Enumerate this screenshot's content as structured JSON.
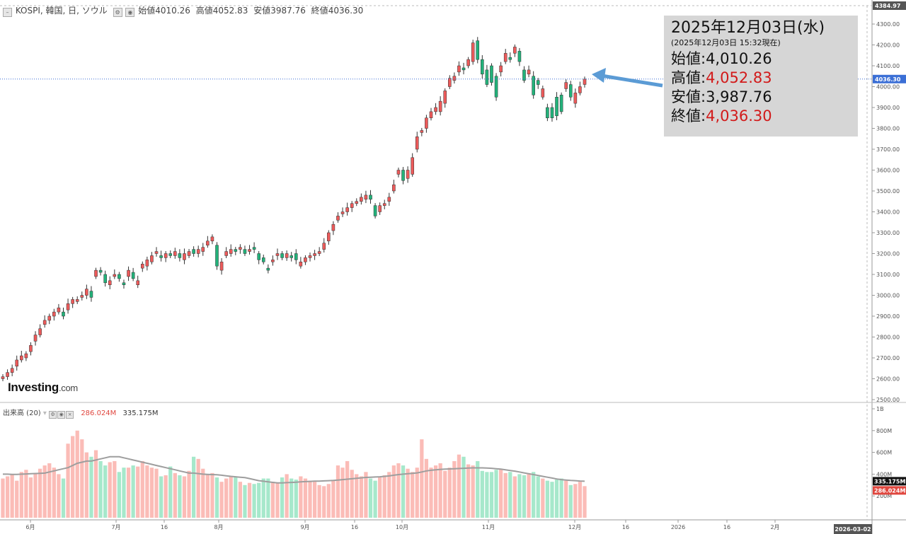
{
  "header": {
    "collapse_icon": "minus-box-icon",
    "symbol": "KOSPI, 韓国, 日, ソウル",
    "open_label": "始値",
    "open": "4010.26",
    "high_label": "高値",
    "high": "4052.83",
    "low_label": "安値",
    "low": "3987.76",
    "close_label": "終値",
    "close": "4036.30"
  },
  "volume_header": {
    "label": "出来高 (20)",
    "volume": "286.024M",
    "ma": "335.175M"
  },
  "logo": {
    "main": "Investing",
    "suffix": ".com"
  },
  "info_box": {
    "date": "2025年12月03日(水)",
    "asof": "(2025年12月03日 15:32現在)",
    "open": "始値:4,010.26",
    "high_label": "高値:",
    "high": "4,052.83",
    "low": "安値:3,987.76",
    "close_label": "終値:",
    "close": "4,036.30"
  },
  "colors": {
    "up": "#ec5a5a",
    "down": "#22b27a",
    "up_vol": "#fbbcb7",
    "down_vol": "#a6e8cb",
    "ma": "#9e9e9e",
    "arrow": "#5b9bd5",
    "last_price_bg": "#3b6fd6"
  },
  "chart_data": {
    "type": "candlestick",
    "title": "KOSPI, 韓国, 日, ソウル",
    "ylim": [
      2500,
      4384.97
    ],
    "yticks": [
      "2500.00",
      "2600.00",
      "2700.00",
      "2800.00",
      "2900.00",
      "3000.00",
      "3100.00",
      "3200.00",
      "3300.00",
      "3400.00",
      "3500.00",
      "3600.00",
      "3700.00",
      "3800.00",
      "3900.00",
      "4000.00",
      "4100.00",
      "4200.00",
      "4300.00"
    ],
    "ytop_label": "4384.97",
    "last_price": 4036.3,
    "last_price_label": "4036.30",
    "xlabels": [
      "6月",
      "7月",
      "16",
      "8月",
      "9月",
      "16",
      "10月",
      "11月",
      "12月",
      "16",
      "2026",
      "16",
      "2月"
    ],
    "xend_label": "2026-03-02",
    "candles": [
      {
        "o": 2600,
        "c": 2610
      },
      {
        "o": 2610,
        "c": 2630
      },
      {
        "o": 2630,
        "c": 2650
      },
      {
        "o": 2660,
        "c": 2690
      },
      {
        "o": 2690,
        "c": 2710
      },
      {
        "o": 2700,
        "c": 2720
      },
      {
        "o": 2730,
        "c": 2760
      },
      {
        "o": 2780,
        "c": 2810
      },
      {
        "o": 2810,
        "c": 2840
      },
      {
        "o": 2860,
        "c": 2880
      },
      {
        "o": 2880,
        "c": 2900
      },
      {
        "o": 2900,
        "c": 2920
      },
      {
        "o": 2920,
        "c": 2940
      },
      {
        "o": 2920,
        "c": 2900
      },
      {
        "o": 2930,
        "c": 2960
      },
      {
        "o": 2960,
        "c": 2980
      },
      {
        "o": 2970,
        "c": 2980
      },
      {
        "o": 2990,
        "c": 3000
      },
      {
        "o": 3000,
        "c": 3030
      },
      {
        "o": 3020,
        "c": 2990
      },
      {
        "o": 3090,
        "c": 3120
      },
      {
        "o": 3120,
        "c": 3110
      },
      {
        "o": 3100,
        "c": 3060
      },
      {
        "o": 3050,
        "c": 3070
      },
      {
        "o": 3090,
        "c": 3100
      },
      {
        "o": 3100,
        "c": 3080
      },
      {
        "o": 3060,
        "c": 3050
      },
      {
        "o": 3090,
        "c": 3120
      },
      {
        "o": 3110,
        "c": 3080
      },
      {
        "o": 3050,
        "c": 3070
      },
      {
        "o": 3130,
        "c": 3150
      },
      {
        "o": 3140,
        "c": 3170
      },
      {
        "o": 3160,
        "c": 3190
      },
      {
        "o": 3200,
        "c": 3210
      },
      {
        "o": 3190,
        "c": 3180
      },
      {
        "o": 3180,
        "c": 3200
      },
      {
        "o": 3200,
        "c": 3190
      },
      {
        "o": 3190,
        "c": 3210
      },
      {
        "o": 3200,
        "c": 3180
      },
      {
        "o": 3170,
        "c": 3200
      },
      {
        "o": 3190,
        "c": 3210
      },
      {
        "o": 3220,
        "c": 3200
      },
      {
        "o": 3200,
        "c": 3220
      },
      {
        "o": 3210,
        "c": 3230
      },
      {
        "o": 3240,
        "c": 3260
      },
      {
        "o": 3260,
        "c": 3280
      },
      {
        "o": 3240,
        "c": 3140
      },
      {
        "o": 3120,
        "c": 3160
      },
      {
        "o": 3190,
        "c": 3210
      },
      {
        "o": 3200,
        "c": 3220
      },
      {
        "o": 3220,
        "c": 3210
      },
      {
        "o": 3220,
        "c": 3230
      },
      {
        "o": 3220,
        "c": 3200
      },
      {
        "o": 3210,
        "c": 3220
      },
      {
        "o": 3230,
        "c": 3220
      },
      {
        "o": 3200,
        "c": 3170
      },
      {
        "o": 3180,
        "c": 3160
      },
      {
        "o": 3130,
        "c": 3120
      },
      {
        "o": 3160,
        "c": 3170
      },
      {
        "o": 3190,
        "c": 3200
      },
      {
        "o": 3200,
        "c": 3180
      },
      {
        "o": 3180,
        "c": 3200
      },
      {
        "o": 3190,
        "c": 3180
      },
      {
        "o": 3200,
        "c": 3170
      },
      {
        "o": 3140,
        "c": 3160
      },
      {
        "o": 3160,
        "c": 3180
      },
      {
        "o": 3180,
        "c": 3190
      },
      {
        "o": 3190,
        "c": 3200
      },
      {
        "o": 3200,
        "c": 3210
      },
      {
        "o": 3220,
        "c": 3250
      },
      {
        "o": 3260,
        "c": 3300
      },
      {
        "o": 3310,
        "c": 3340
      },
      {
        "o": 3360,
        "c": 3380
      },
      {
        "o": 3390,
        "c": 3400
      },
      {
        "o": 3400,
        "c": 3420
      },
      {
        "o": 3420,
        "c": 3440
      },
      {
        "o": 3440,
        "c": 3450
      },
      {
        "o": 3450,
        "c": 3470
      },
      {
        "o": 3460,
        "c": 3480
      },
      {
        "o": 3480,
        "c": 3460
      },
      {
        "o": 3430,
        "c": 3380
      },
      {
        "o": 3400,
        "c": 3430
      },
      {
        "o": 3430,
        "c": 3440
      },
      {
        "o": 3450,
        "c": 3470
      },
      {
        "o": 3500,
        "c": 3530
      },
      {
        "o": 3580,
        "c": 3600
      },
      {
        "o": 3600,
        "c": 3550
      },
      {
        "o": 3560,
        "c": 3600
      },
      {
        "o": 3580,
        "c": 3660
      },
      {
        "o": 3700,
        "c": 3760
      },
      {
        "o": 3780,
        "c": 3790
      },
      {
        "o": 3800,
        "c": 3850
      },
      {
        "o": 3850,
        "c": 3880
      },
      {
        "o": 3880,
        "c": 3900
      },
      {
        "o": 3880,
        "c": 3930
      },
      {
        "o": 3920,
        "c": 3980
      },
      {
        "o": 4000,
        "c": 4040
      },
      {
        "o": 4030,
        "c": 4050
      },
      {
        "o": 4070,
        "c": 4100
      },
      {
        "o": 4090,
        "c": 4080
      },
      {
        "o": 4100,
        "c": 4130
      },
      {
        "o": 4120,
        "c": 4210
      },
      {
        "o": 4220,
        "c": 4130
      },
      {
        "o": 4130,
        "c": 4060
      },
      {
        "o": 4080,
        "c": 4010
      },
      {
        "o": 4100,
        "c": 4020
      },
      {
        "o": 4050,
        "c": 3950
      },
      {
        "o": 4070,
        "c": 4100
      },
      {
        "o": 4120,
        "c": 4160
      },
      {
        "o": 4140,
        "c": 4130
      },
      {
        "o": 4160,
        "c": 4190
      },
      {
        "o": 4170,
        "c": 4120
      },
      {
        "o": 4080,
        "c": 4030
      },
      {
        "o": 4060,
        "c": 4080
      },
      {
        "o": 4050,
        "c": 3960
      },
      {
        "o": 4030,
        "c": 4010
      },
      {
        "o": 3950,
        "c": 3990
      },
      {
        "o": 3900,
        "c": 3850
      },
      {
        "o": 3900,
        "c": 3850
      },
      {
        "o": 3950,
        "c": 3860
      },
      {
        "o": 3960,
        "c": 3880
      },
      {
        "o": 3990,
        "c": 4020
      },
      {
        "o": 4010,
        "c": 3950
      },
      {
        "o": 3920,
        "c": 3970
      },
      {
        "o": 3970,
        "c": 4000
      },
      {
        "o": 4010.26,
        "c": 4036.3
      }
    ],
    "volume": {
      "label": "出来高 (20)",
      "ylim_labels": [
        "200M",
        "400M",
        "600M",
        "800M",
        "1B"
      ],
      "last_volume_label": "286.024M",
      "ma_label": "335.175M",
      "values": [
        360,
        380,
        400,
        340,
        420,
        440,
        370,
        410,
        450,
        480,
        500,
        460,
        400,
        360,
        680,
        750,
        800,
        720,
        600,
        560,
        620,
        520,
        480,
        510,
        520,
        420,
        460,
        460,
        480,
        470,
        520,
        480,
        460,
        450,
        380,
        390,
        470,
        410,
        390,
        380,
        430,
        560,
        540,
        450,
        400,
        410,
        370,
        330,
        360,
        380,
        370,
        330,
        300,
        320,
        310,
        320,
        360,
        360,
        330,
        320,
        370,
        400,
        360,
        350,
        380,
        360,
        340,
        330,
        300,
        290,
        310,
        340,
        480,
        460,
        520,
        440,
        400,
        380,
        420,
        360,
        340,
        370,
        390,
        420,
        480,
        500,
        480,
        450,
        420,
        460,
        720,
        540,
        460,
        480,
        500,
        430,
        460,
        520,
        580,
        560,
        490,
        480,
        520,
        430,
        420,
        420,
        440,
        450,
        410,
        420,
        380,
        400,
        390,
        410,
        420,
        380,
        360,
        340,
        330,
        350,
        360,
        340,
        300,
        310,
        330,
        290
      ],
      "ma": [
        400,
        400,
        398,
        398,
        400,
        402,
        404,
        406,
        408,
        410,
        420,
        430,
        440,
        450,
        460,
        480,
        500,
        510,
        520,
        520,
        530,
        540,
        550,
        560,
        560,
        560,
        550,
        540,
        530,
        520,
        510,
        500,
        490,
        480,
        470,
        460,
        450,
        440,
        430,
        420,
        410,
        410,
        405,
        400,
        398,
        396,
        394,
        390,
        385,
        380,
        376,
        372,
        368,
        360,
        350,
        340,
        335,
        330,
        325,
        320,
        320,
        322,
        324,
        326,
        330,
        332,
        334,
        336,
        336,
        338,
        340,
        342,
        346,
        350,
        354,
        358,
        362,
        366,
        370,
        372,
        374,
        376,
        380,
        384,
        390,
        396,
        400,
        404,
        408,
        412,
        420,
        430,
        436,
        440,
        444,
        446,
        448,
        450,
        452,
        454,
        456,
        458,
        458,
        458,
        456,
        454,
        450,
        446,
        440,
        434,
        428,
        420,
        412,
        404,
        396,
        388,
        380,
        372,
        364,
        356,
        350,
        346,
        342,
        340,
        337,
        335.175
      ]
    }
  }
}
